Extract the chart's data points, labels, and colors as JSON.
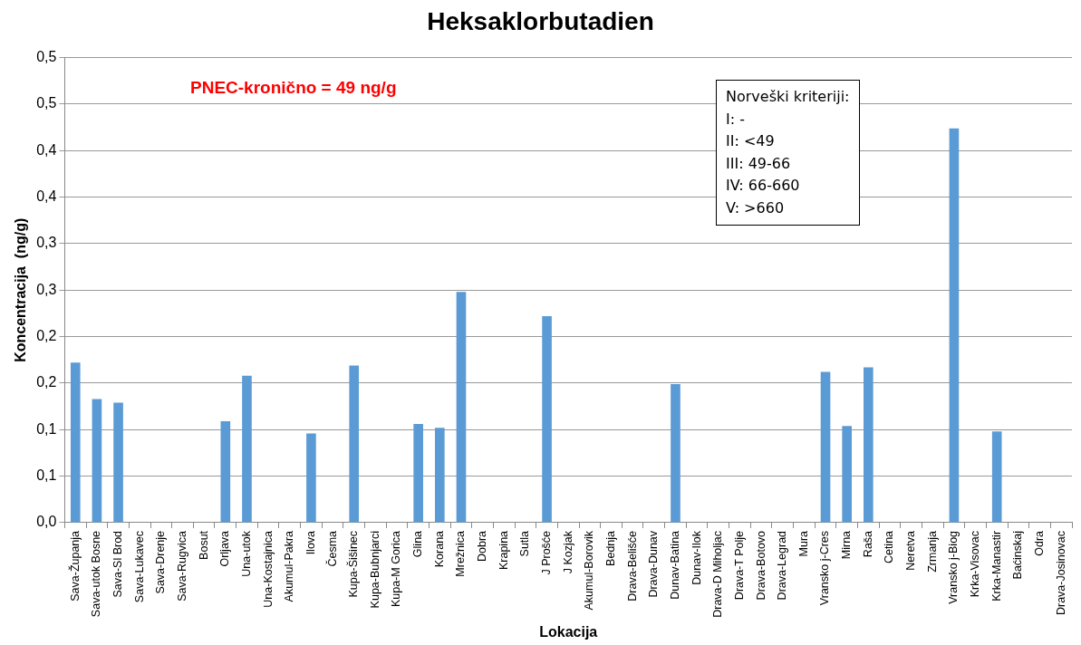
{
  "chart_data": {
    "type": "bar",
    "title": "Heksaklorbutadien",
    "xlabel": "Lokacija",
    "ylabel": "Koncentracija  (ng/g)",
    "categories": [
      "Sava-Županja",
      "Sava-utok Bosne",
      "Sava-Sl Brod",
      "Sava-Lukavec",
      "Sava-Drenje",
      "Sava-Rugvica",
      "Bosut",
      "Orljava",
      "Una-utok",
      "Una-Kostajnica",
      "Akumul-Pakra",
      "Ilova",
      "Česma",
      "Kupa-Šišinec",
      "Kupa-Bubnjarci",
      "Kupa-M Gorica",
      "Glina",
      "Korana",
      "Mrežnica",
      "Dobra",
      "Krapina",
      "Sutla",
      "J Prošće",
      "J Kozjak",
      "Akumul-Borovik",
      "Bednja",
      "Drava-Belišće",
      "Drava-Dunav",
      "Dunav-Batina",
      "Dunav-Ilok",
      "Drava-D Miholjac",
      "Drava-T Polje",
      "Drava-Botovo",
      "Drava-Legrad",
      "Mura",
      "Vransko j-Cres",
      "Mirna",
      "Raša",
      "Cetina",
      "Neretva",
      "Zrmanja",
      "Vransko j-Biog",
      "Krka-Visovac",
      "Krka-Manastir",
      "Baćinskaj",
      "Odra",
      "Drava-Josinovac"
    ],
    "values": [
      0.172,
      0.133,
      0.129,
      0,
      0,
      0,
      0,
      0.109,
      0.158,
      0,
      0,
      0.096,
      0,
      0.169,
      0,
      0,
      0.106,
      0.102,
      0.248,
      0,
      0,
      0,
      0.222,
      0,
      0,
      0,
      0,
      0,
      0.149,
      0,
      0,
      0,
      0,
      0,
      0,
      0.162,
      0.104,
      0.167,
      0,
      0,
      0,
      0.424,
      0,
      0.098,
      0,
      0,
      0
    ],
    "color": "#5b9bd5",
    "ylim": [
      0,
      0.5
    ],
    "yticks": [
      {
        "value": 0,
        "label": "0,0"
      },
      {
        "value": 0.05,
        "label": "0,1"
      },
      {
        "value": 0.1,
        "label": "0,1"
      },
      {
        "value": 0.15,
        "label": "0,2"
      },
      {
        "value": 0.2,
        "label": "0,2"
      },
      {
        "value": 0.25,
        "label": "0,3"
      },
      {
        "value": 0.3,
        "label": "0,3"
      },
      {
        "value": 0.35,
        "label": "0,4"
      },
      {
        "value": 0.4,
        "label": "0,4"
      },
      {
        "value": 0.45,
        "label": "0,5"
      },
      {
        "value": 0.5,
        "label": "0,5"
      }
    ],
    "grid": "y",
    "annotations": [
      "PNEC-kronično = 49 ng/g",
      "Norveški kriteriji:",
      "I: -",
      "II: <49",
      "III: 49-66",
      "IV: 66-660",
      "V: >660"
    ]
  }
}
